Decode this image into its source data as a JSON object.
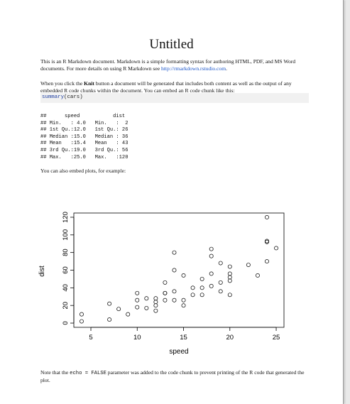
{
  "document": {
    "title": "Untitled",
    "intro": {
      "t1": "This is an R Markdown document. Markdown is a simple formatting syntax for authoring HTML, PDF, and MS Word documents. For more details on using R Markdown see ",
      "link": "http://rmarkdown.rstudio.com",
      "t2": "."
    },
    "knit_paragraph": {
      "t1": "When you click the ",
      "bold": "Knit",
      "t2": " button a document will be generated that includes both content as well as the output of any embedded R code chunks within the document. You can embed an R code chunk like this:"
    },
    "code_chunk": {
      "fn": "summary",
      "args": "(cars)"
    },
    "summary_output": "##      speed           dist       \n## Min.   : 4.0   Min.   :  2  \n## 1st Qu.:12.0   1st Qu.: 26  \n## Median :15.0   Median : 36  \n## Mean   :15.4   Mean   : 43  \n## 3rd Qu.:19.0   3rd Qu.: 56  \n## Max.   :25.0   Max.   :120  ",
    "plots_paragraph": "You can also embed plots, for example:",
    "footer_paragraph": {
      "t1": "Note that the ",
      "code": "echo = FALSE",
      "t2": " parameter was added to the code chunk to prevent printing of the R code that generated the plot."
    }
  },
  "chart_data": {
    "type": "scatter",
    "title": "",
    "xlabel": "speed",
    "ylabel": "dist",
    "xlim": [
      4,
      25
    ],
    "ylim": [
      0,
      120
    ],
    "xticks": [
      5,
      10,
      15,
      20,
      25
    ],
    "yticks": [
      0,
      20,
      40,
      60,
      80,
      100,
      120
    ],
    "grid": false,
    "points": [
      [
        4,
        2
      ],
      [
        4,
        10
      ],
      [
        7,
        4
      ],
      [
        7,
        22
      ],
      [
        8,
        16
      ],
      [
        9,
        10
      ],
      [
        10,
        18
      ],
      [
        10,
        26
      ],
      [
        10,
        34
      ],
      [
        11,
        17
      ],
      [
        11,
        28
      ],
      [
        12,
        14
      ],
      [
        12,
        20
      ],
      [
        12,
        24
      ],
      [
        12,
        28
      ],
      [
        13,
        26
      ],
      [
        13,
        34
      ],
      [
        13,
        34
      ],
      [
        13,
        46
      ],
      [
        14,
        26
      ],
      [
        14,
        36
      ],
      [
        14,
        60
      ],
      [
        14,
        80
      ],
      [
        15,
        20
      ],
      [
        15,
        26
      ],
      [
        15,
        54
      ],
      [
        16,
        32
      ],
      [
        16,
        40
      ],
      [
        17,
        32
      ],
      [
        17,
        40
      ],
      [
        17,
        50
      ],
      [
        18,
        42
      ],
      [
        18,
        56
      ],
      [
        18,
        76
      ],
      [
        18,
        84
      ],
      [
        19,
        36
      ],
      [
        19,
        46
      ],
      [
        19,
        68
      ],
      [
        20,
        32
      ],
      [
        20,
        48
      ],
      [
        20,
        52
      ],
      [
        20,
        56
      ],
      [
        20,
        64
      ],
      [
        22,
        66
      ],
      [
        23,
        54
      ],
      [
        24,
        70
      ],
      [
        24,
        92
      ],
      [
        24,
        93
      ],
      [
        24,
        120
      ],
      [
        25,
        85
      ]
    ]
  }
}
